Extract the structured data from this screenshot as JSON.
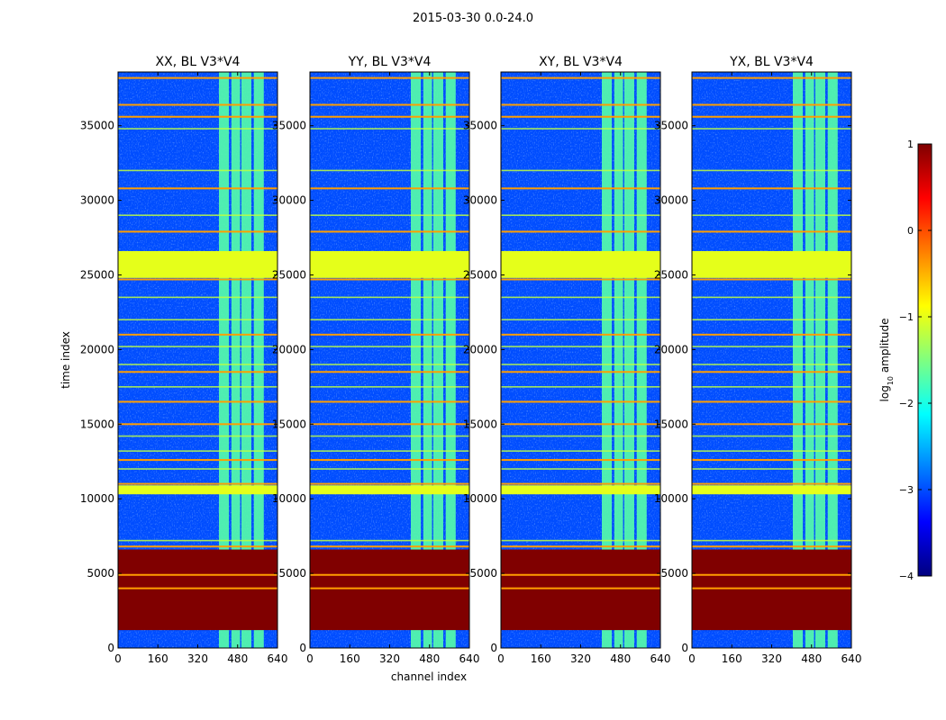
{
  "figure": {
    "suptitle": "2015-03-30 0.0-24.0"
  },
  "chart_data": {
    "type": "heatmap",
    "title": "2015-03-30 0.0-24.0",
    "xlabel": "channel index",
    "ylabel": "time index",
    "xlim": [
      0,
      640
    ],
    "ylim": [
      0,
      38600
    ],
    "xticks": [
      0,
      160,
      320,
      480,
      640
    ],
    "yticks": [
      0,
      5000,
      10000,
      15000,
      20000,
      25000,
      30000,
      35000
    ],
    "colormap": "jet",
    "colorbar": {
      "label": "log10 amplitude",
      "label_main": "log",
      "label_sub": "10",
      "label_rest": " amplitude",
      "range": [
        -4,
        1
      ],
      "ticks": [
        1,
        0,
        -1,
        -2,
        -3,
        -4
      ],
      "tick_labels": [
        "1",
        "0",
        "−1",
        "−2",
        "−3",
        "−4"
      ]
    },
    "panels": [
      {
        "title": "XX, BL V3*V4"
      },
      {
        "title": "YY, BL V3*V4"
      },
      {
        "title": "XY, BL V3*V4"
      },
      {
        "title": "YX, BL V3*V4"
      }
    ],
    "background_level": -3.0,
    "rfi_channel_bands": [
      [
        405,
        445
      ],
      [
        455,
        490
      ],
      [
        495,
        535
      ],
      [
        545,
        585
      ]
    ],
    "rfi_band_level": -1.7,
    "flagged_time_ranges": [
      {
        "from": 1200,
        "to": 6600,
        "level": 1.0
      },
      {
        "from": 24800,
        "to": 26600,
        "level": -1.0
      },
      {
        "from": 10300,
        "to": 10900,
        "level": -1.0
      }
    ],
    "hot_time_lines": [
      4000,
      4900,
      6800,
      11000,
      12600,
      15000,
      16500,
      18500,
      21000,
      24700,
      27900,
      30800,
      35600,
      36400,
      38200
    ],
    "warm_time_lines": [
      7200,
      12000,
      13200,
      14200,
      17500,
      19000,
      20200,
      22000,
      23500,
      29000,
      32000,
      34800
    ]
  }
}
